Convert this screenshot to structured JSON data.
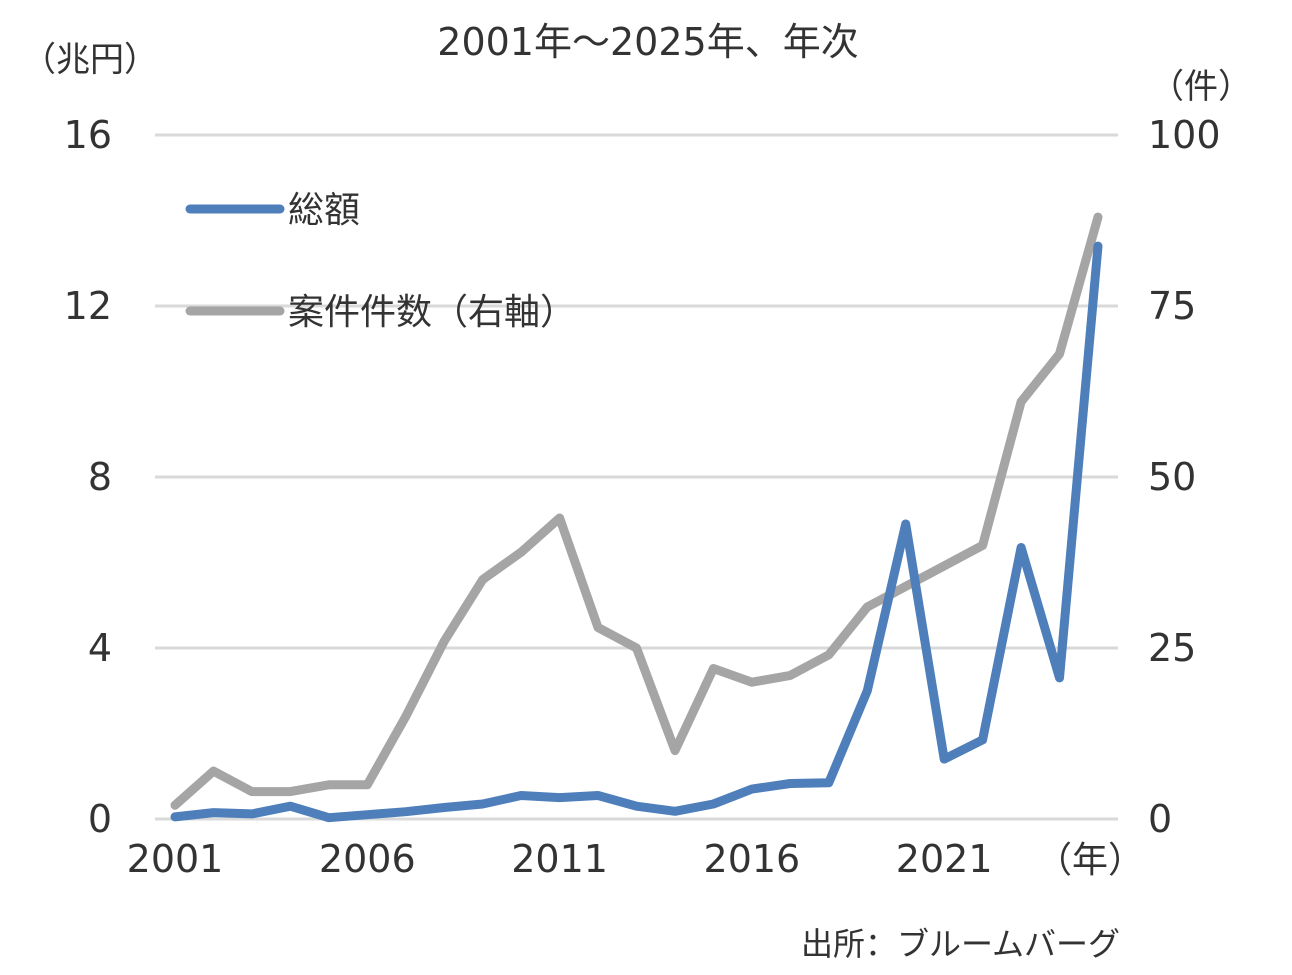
{
  "chart_data": {
    "type": "line",
    "title": "2001年～2025年、年次",
    "y_left_unit": "（兆円）",
    "y_right_unit": "（件）",
    "x_unit": "（年）",
    "source": "出所：ブルームバーグ",
    "x": [
      2001,
      2002,
      2003,
      2004,
      2005,
      2006,
      2007,
      2008,
      2009,
      2010,
      2011,
      2012,
      2013,
      2014,
      2015,
      2016,
      2017,
      2018,
      2019,
      2020,
      2021,
      2022,
      2023,
      2024,
      2025
    ],
    "x_ticks": [
      "2001",
      "2006",
      "2011",
      "2016",
      "2021"
    ],
    "y_left_ticks": [
      "0",
      "4",
      "8",
      "12",
      "16"
    ],
    "y_right_ticks": [
      "0",
      "25",
      "50",
      "75",
      "100"
    ],
    "y_left_lim": [
      0,
      16
    ],
    "y_right_lim": [
      0,
      100
    ],
    "grid": true,
    "legend_position": "top-left",
    "series": [
      {
        "name": "総額",
        "axis": "left",
        "color": "#4E7FBB",
        "values": [
          0.05,
          0.15,
          0.12,
          0.3,
          0.03,
          0.1,
          0.17,
          0.27,
          0.35,
          0.55,
          0.5,
          0.55,
          0.3,
          0.18,
          0.35,
          0.7,
          0.83,
          0.85,
          3.0,
          6.9,
          1.4,
          1.85,
          6.35,
          3.3,
          13.4
        ]
      },
      {
        "name": "案件件数（右軸）",
        "axis": "right",
        "color": "#A5A5A5",
        "values": [
          2,
          7,
          4,
          4,
          5,
          5,
          15,
          26,
          35,
          39,
          44,
          28,
          25,
          10,
          22,
          20,
          21,
          24,
          31,
          34,
          37,
          40,
          61,
          68,
          88
        ]
      }
    ]
  }
}
